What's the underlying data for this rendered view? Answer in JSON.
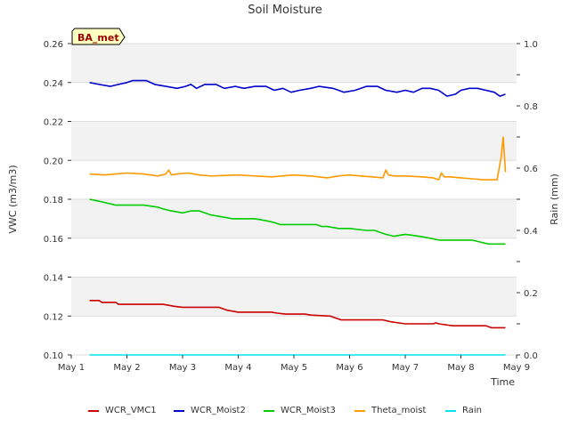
{
  "chart_data": {
    "type": "line",
    "title": "Soil Moisture",
    "badge": "BA_met",
    "xlabel": "Time",
    "ylabel": "VWC (m3/m3)",
    "y2label": "Rain (mm)",
    "xlim": [
      1.0,
      9.0
    ],
    "ylim": [
      0.1,
      0.26
    ],
    "y2lim": [
      0.0,
      1.0
    ],
    "x_ticks": [
      1,
      2,
      3,
      4,
      5,
      6,
      7,
      8,
      9
    ],
    "x_tick_labels": [
      "May 1",
      "May 2",
      "May 3",
      "May 4",
      "May 5",
      "May 6",
      "May 7",
      "May 8",
      "May 9"
    ],
    "y_ticks": [
      0.1,
      0.12,
      0.14,
      0.16,
      0.18,
      0.2,
      0.22,
      0.24,
      0.26
    ],
    "y_tick_labels": [
      "0.10",
      "0.12",
      "0.14",
      "0.16",
      "0.18",
      "0.20",
      "0.22",
      "0.24",
      "0.26"
    ],
    "y2_ticks": [
      0.0,
      0.2,
      0.4,
      0.6,
      0.8,
      1.0
    ],
    "y2_tick_labels": [
      "0.0",
      "0.2",
      "0.4",
      "0.6",
      "0.8",
      "1.0"
    ],
    "series": [
      {
        "name": "WCR_VMC1",
        "color": "#cc0000",
        "axis": "left",
        "x": [
          1.33,
          1.5,
          1.55,
          1.8,
          1.85,
          2.65,
          2.75,
          2.85,
          3.0,
          3.65,
          3.8,
          4.0,
          4.6,
          4.7,
          4.85,
          5.2,
          5.3,
          5.65,
          5.85,
          6.6,
          6.75,
          7.0,
          7.5,
          7.55,
          7.6,
          7.85,
          8.45,
          8.55,
          8.8
        ],
        "values": [
          0.128,
          0.128,
          0.127,
          0.127,
          0.126,
          0.126,
          0.1255,
          0.125,
          0.1245,
          0.1245,
          0.123,
          0.122,
          0.122,
          0.1215,
          0.121,
          0.121,
          0.1205,
          0.12,
          0.118,
          0.118,
          0.117,
          0.116,
          0.116,
          0.1165,
          0.116,
          0.115,
          0.115,
          0.114,
          0.114
        ]
      },
      {
        "name": "WCR_Moist2",
        "color": "#0000cc",
        "axis": "left",
        "x": [
          1.33,
          1.5,
          1.7,
          1.85,
          2.0,
          2.1,
          2.35,
          2.5,
          2.7,
          2.9,
          3.05,
          3.15,
          3.25,
          3.4,
          3.6,
          3.75,
          3.95,
          4.1,
          4.3,
          4.5,
          4.65,
          4.8,
          4.95,
          5.1,
          5.3,
          5.45,
          5.7,
          5.9,
          6.1,
          6.3,
          6.5,
          6.65,
          6.85,
          7.0,
          7.15,
          7.3,
          7.45,
          7.6,
          7.75,
          7.9,
          8.0,
          8.15,
          8.3,
          8.45,
          8.6,
          8.7,
          8.8
        ],
        "values": [
          0.24,
          0.239,
          0.238,
          0.239,
          0.24,
          0.241,
          0.241,
          0.239,
          0.238,
          0.237,
          0.238,
          0.239,
          0.237,
          0.239,
          0.239,
          0.237,
          0.238,
          0.237,
          0.238,
          0.238,
          0.236,
          0.237,
          0.235,
          0.236,
          0.237,
          0.238,
          0.237,
          0.235,
          0.236,
          0.238,
          0.238,
          0.236,
          0.235,
          0.236,
          0.235,
          0.237,
          0.237,
          0.236,
          0.233,
          0.234,
          0.236,
          0.237,
          0.237,
          0.236,
          0.235,
          0.233,
          0.234
        ]
      },
      {
        "name": "WCR_Moist3",
        "color": "#00cc00",
        "axis": "left",
        "x": [
          1.33,
          1.5,
          1.65,
          1.8,
          2.0,
          2.3,
          2.55,
          2.65,
          2.8,
          3.0,
          3.15,
          3.3,
          3.5,
          3.7,
          3.9,
          4.1,
          4.3,
          4.5,
          4.65,
          4.75,
          5.0,
          5.4,
          5.5,
          5.6,
          5.8,
          6.0,
          6.3,
          6.45,
          6.55,
          6.65,
          6.8,
          7.0,
          7.25,
          7.45,
          7.6,
          7.9,
          8.2,
          8.35,
          8.5,
          8.8
        ],
        "values": [
          0.18,
          0.179,
          0.178,
          0.177,
          0.177,
          0.177,
          0.176,
          0.175,
          0.174,
          0.173,
          0.174,
          0.174,
          0.172,
          0.171,
          0.17,
          0.17,
          0.17,
          0.169,
          0.168,
          0.167,
          0.167,
          0.167,
          0.166,
          0.166,
          0.165,
          0.165,
          0.164,
          0.164,
          0.163,
          0.162,
          0.161,
          0.162,
          0.161,
          0.16,
          0.159,
          0.159,
          0.159,
          0.158,
          0.157,
          0.157
        ]
      },
      {
        "name": "Theta_moist",
        "color": "#ff9900",
        "axis": "left",
        "x": [
          1.33,
          1.6,
          1.8,
          2.0,
          2.3,
          2.55,
          2.7,
          2.75,
          2.8,
          2.9,
          3.1,
          3.3,
          3.5,
          4.0,
          4.3,
          4.6,
          5.0,
          5.3,
          5.6,
          5.8,
          6.0,
          6.2,
          6.4,
          6.6,
          6.65,
          6.7,
          6.8,
          7.0,
          7.3,
          7.5,
          7.6,
          7.65,
          7.7,
          7.8,
          8.0,
          8.2,
          8.4,
          8.65,
          8.72,
          8.76,
          8.8
        ],
        "values": [
          0.193,
          0.1925,
          0.193,
          0.1935,
          0.193,
          0.192,
          0.193,
          0.195,
          0.1925,
          0.193,
          0.1935,
          0.1925,
          0.192,
          0.1925,
          0.192,
          0.1915,
          0.1925,
          0.192,
          0.191,
          0.192,
          0.1925,
          0.192,
          0.1915,
          0.191,
          0.195,
          0.1925,
          0.192,
          0.192,
          0.1915,
          0.191,
          0.19,
          0.1935,
          0.1915,
          0.1915,
          0.191,
          0.1905,
          0.19,
          0.19,
          0.201,
          0.212,
          0.194
        ]
      },
      {
        "name": "Rain",
        "color": "#00e5ee",
        "axis": "right",
        "x": [
          1.33,
          8.8
        ],
        "values": [
          0.0,
          0.0
        ]
      }
    ],
    "legend_position": "bottom-center"
  }
}
